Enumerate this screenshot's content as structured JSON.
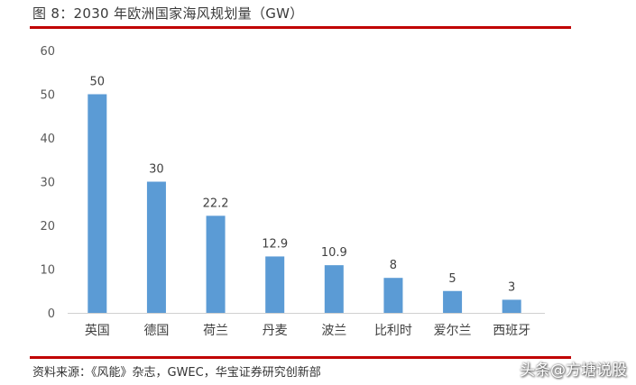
{
  "figure": {
    "title": "图 8：2030 年欧洲国家海风规划量（GW）",
    "source": "资料来源：《风能》杂志，GWEC，华宝证券研究创新部",
    "watermark": "头条@方塘说股",
    "accent_color": "#c00000"
  },
  "chart_data": {
    "type": "bar",
    "title": "图 8：2030 年欧洲国家海风规划量（GW）",
    "xlabel": "",
    "ylabel": "",
    "categories": [
      "英国",
      "德国",
      "荷兰",
      "丹麦",
      "波兰",
      "比利时",
      "爱尔兰",
      "西班牙"
    ],
    "values": [
      50,
      30,
      22.2,
      12.9,
      10.9,
      8,
      5,
      3
    ],
    "data_labels": [
      "50",
      "30",
      "22.2",
      "12.9",
      "10.9",
      "8",
      "5",
      "3"
    ],
    "ylim": [
      0,
      60
    ],
    "yticks": [
      0,
      10,
      20,
      30,
      40,
      50,
      60
    ],
    "grid": false,
    "legend": "none",
    "bar_color": "#5b9bd5"
  }
}
